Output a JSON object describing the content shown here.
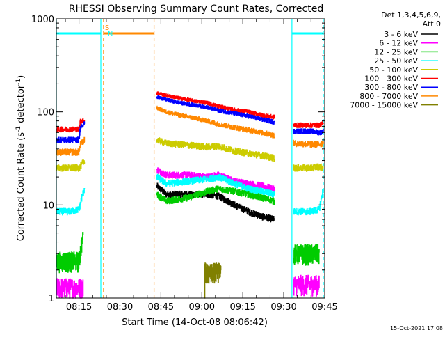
{
  "chart_data": {
    "type": "line",
    "title": "RHESSI Observing Summary Count Rates, Corrected",
    "xlabel": "Start Time (14-Oct-08 08:06:42)",
    "ylabel_main": "Corrected Count Rate (s",
    "ylabel_sup1": "-1",
    "ylabel_mid": " detector",
    "ylabel_sup2": "-1",
    "ylabel_end": ")",
    "yscale": "log",
    "ylim": [
      1,
      1000
    ],
    "xlim": [
      6.7,
      105
    ],
    "x_unit": "minutes after 08:00",
    "x_ticks": [
      {
        "x": 15,
        "label": "08:15"
      },
      {
        "x": 30,
        "label": "08:30"
      },
      {
        "x": 45,
        "label": "08:45"
      },
      {
        "x": 60,
        "label": "09:00"
      },
      {
        "x": 75,
        "label": "09:15"
      },
      {
        "x": 90,
        "label": "09:30"
      },
      {
        "x": 105,
        "label": "09:45"
      }
    ],
    "y_ticks": [
      {
        "y": 1,
        "label": "1"
      },
      {
        "y": 10,
        "label": "10"
      },
      {
        "y": 100,
        "label": "100"
      },
      {
        "y": 1000,
        "label": "1000"
      }
    ],
    "legend_header": [
      "Det 1,3,4,5,6,9,",
      "Att 0"
    ],
    "legend_position": "right",
    "gaps": [
      [
        28,
        42.5
      ],
      [
        87.5,
        93
      ]
    ],
    "series": [
      {
        "name": "3 - 6 keV",
        "color": "#000000",
        "segments": [
          {
            "x": [
              43.5,
              47,
              55,
              62,
              66,
              72,
              77,
              82,
              86.5
            ],
            "y": [
              16,
              13,
              13,
              13,
              12.5,
              10,
              8.5,
              7.5,
              7
            ]
          }
        ]
      },
      {
        "name": "6 - 12 keV",
        "color": "#ff00ff",
        "segments": [
          {
            "x": [
              6.7,
              15,
              16.5
            ],
            "y": [
              1.3,
              1.3,
              1.3
            ]
          },
          {
            "x": [
              43.5,
              47,
              55,
              62,
              66,
              72,
              77,
              82,
              86.5
            ],
            "y": [
              24,
              21,
              21,
              20,
              21,
              18,
              17,
              16,
              15
            ]
          },
          {
            "x": [
              93.5,
              100,
              103
            ],
            "y": [
              1.4,
              1.4,
              1.4
            ]
          }
        ]
      },
      {
        "name": "12 - 25 keV",
        "color": "#00cc00",
        "segments": [
          {
            "x": [
              6.7,
              15,
              16.5
            ],
            "y": [
              2.5,
              2.5,
              5
            ]
          },
          {
            "x": [
              43.5,
              47,
              55,
              62,
              66,
              72,
              77,
              82,
              86.5
            ],
            "y": [
              13,
              11,
              12,
              14,
              15,
              14,
              13,
              12,
              11
            ]
          },
          {
            "x": [
              93.5,
              100,
              103
            ],
            "y": [
              3,
              3,
              3
            ]
          }
        ]
      },
      {
        "name": "25 - 50 keV",
        "color": "#00ffff",
        "segments": [
          {
            "x": [
              6.7,
              12,
              15,
              16,
              17
            ],
            "y": [
              8.5,
              8.5,
              9,
              12,
              15
            ]
          },
          {
            "x": [
              43.5,
              47,
              55,
              62,
              66,
              72,
              77,
              82,
              86.5
            ],
            "y": [
              20,
              17,
              18,
              19,
              20,
              17,
              15,
              14,
              13
            ]
          },
          {
            "x": [
              93.5,
              100,
              103,
              104.5
            ],
            "y": [
              8.5,
              8.5,
              9,
              15
            ]
          }
        ]
      },
      {
        "name": "50 - 100 keV",
        "color": "#cccc00",
        "segments": [
          {
            "x": [
              6.7,
              15,
              17
            ],
            "y": [
              25,
              25,
              30
            ]
          },
          {
            "x": [
              43.5,
              47,
              55,
              62,
              66,
              72,
              77,
              82,
              86.5
            ],
            "y": [
              50,
              46,
              44,
              42,
              43,
              38,
              36,
              34,
              32
            ]
          },
          {
            "x": [
              93.5,
              100,
              103,
              104.5
            ],
            "y": [
              25,
              25,
              26,
              25
            ]
          }
        ]
      },
      {
        "name": "100 - 300 keV",
        "color": "#ff0000",
        "segments": [
          {
            "x": [
              6.7,
              15,
              15.5,
              17
            ],
            "y": [
              65,
              65,
              80,
              80
            ]
          },
          {
            "x": [
              43.5,
              47,
              52,
              58,
              62,
              66,
              72,
              77,
              82,
              86.5
            ],
            "y": [
              160,
              150,
              140,
              130,
              125,
              115,
              105,
              100,
              92,
              88
            ]
          },
          {
            "x": [
              93.5,
              100,
              103,
              104.5
            ],
            "y": [
              72,
              72,
              72,
              75
            ]
          }
        ]
      },
      {
        "name": "300 - 800 keV",
        "color": "#0000ff",
        "segments": [
          {
            "x": [
              6.7,
              15,
              15.5,
              17
            ],
            "y": [
              50,
              50,
              70,
              75
            ]
          },
          {
            "x": [
              43.5,
              47,
              52,
              58,
              62,
              66,
              72,
              77,
              82,
              86.5
            ],
            "y": [
              145,
              135,
              125,
              118,
              112,
              104,
              96,
              90,
              83,
              78
            ]
          },
          {
            "x": [
              93.5,
              100,
              103,
              104.5
            ],
            "y": [
              62,
              62,
              60,
              62
            ]
          }
        ]
      },
      {
        "name": "800 - 7000 keV",
        "color": "#ff8800",
        "segments": [
          {
            "x": [
              6.7,
              15,
              15.5,
              17
            ],
            "y": [
              37,
              37,
              45,
              50
            ]
          },
          {
            "x": [
              43.5,
              47,
              52,
              58,
              62,
              66,
              72,
              77,
              82,
              86.5
            ],
            "y": [
              110,
              100,
              92,
              85,
              80,
              74,
              68,
              64,
              60,
              56
            ]
          },
          {
            "x": [
              93.5,
              100,
              103,
              104.5
            ],
            "y": [
              46,
              45,
              45,
              46
            ]
          }
        ]
      },
      {
        "name": "7000 - 15000 keV",
        "color": "#808000",
        "segments": [
          {
            "x": [
              61,
              61,
              67,
              67
            ],
            "y": [
              1,
              1.9,
              1.9,
              1
            ]
          }
        ]
      }
    ],
    "flags": [
      {
        "label": "S",
        "color": "#ff8800",
        "x_start": 24,
        "x_end": 42.5,
        "label_x": 24.5
      },
      {
        "label": "N",
        "color": "#00ffff",
        "x_start": 6.7,
        "x_end": 23,
        "label_x": 25.5
      },
      {
        "label": "",
        "color": "#00ffff",
        "x_start": 93,
        "x_end": 104.5,
        "label_x": 93
      }
    ],
    "vlines": [
      {
        "x": 6.7,
        "color": "#00ffff",
        "style": "solid"
      },
      {
        "x": 23,
        "color": "#00ffff",
        "style": "solid"
      },
      {
        "x": 24,
        "color": "#ff8800",
        "style": "dashed"
      },
      {
        "x": 42.5,
        "color": "#ff8800",
        "style": "dashed"
      },
      {
        "x": 93,
        "color": "#00ffff",
        "style": "solid"
      },
      {
        "x": 104.5,
        "color": "#00ffff",
        "style": "dashed"
      }
    ],
    "footer_date": "15-Oct-2021 17:08"
  }
}
